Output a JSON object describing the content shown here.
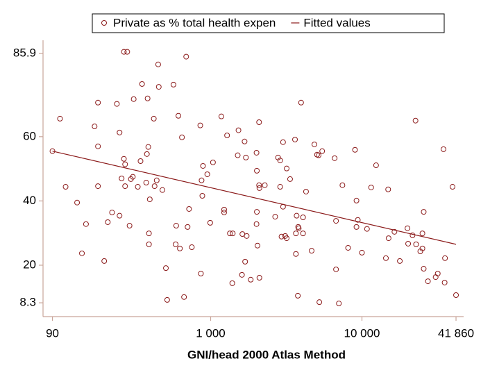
{
  "chart_data": {
    "type": "scatter",
    "x_label": "GNI/head 2000 Atlas Method",
    "xscale": "log",
    "xlim": [
      78,
      47000
    ],
    "ylim": [
      4,
      90
    ],
    "xticks": [
      90,
      {
        "value": 1000,
        "label": "1 000"
      },
      {
        "value": 10000,
        "label": "10 000"
      },
      {
        "value": 41860,
        "label": "41 860"
      }
    ],
    "yticks": [
      8.3,
      20,
      40,
      60,
      85.9
    ],
    "legend": "top",
    "series": [
      {
        "name": "Private as % total health expen",
        "type": "scatter",
        "color": "#8b1a1a",
        "x": [
          90,
          101,
          110,
          131,
          141,
          150,
          171,
          180,
          180,
          180,
          198,
          209,
          223,
          240,
          250,
          250,
          258,
          267,
          281,
          267,
          272,
          272,
          291,
          297,
          306,
          310,
          330,
          344,
          352,
          375,
          379,
          383,
          387,
          391,
          391,
          396,
          421,
          426,
          440,
          450,
          454,
          480,
          506,
          516,
          568,
          587,
          592,
          612,
          626,
          646,
          667,
          689,
          704,
          720,
          751,
          854,
          862,
          871,
          881,
          890,
          950,
          993,
          1036,
          1177,
          1228,
          1228,
          1284,
          1340,
          1400,
          1390,
          1510,
          1527,
          1610,
          1620,
          1676,
          1690,
          1710,
          1730,
          1840,
          2010,
          2010,
          2020,
          2020,
          2040,
          2090,
          2100,
          2100,
          2090,
          2280,
          2670,
          2790,
          2880,
          2880,
          2940,
          3010,
          3010,
          3110,
          3180,
          3180,
          3350,
          3610,
          3660,
          3660,
          3770,
          3700,
          3790,
          3820,
          3960,
          4080,
          4080,
          4270,
          4650,
          4850,
          5050,
          5170,
          5230,
          5460,
          6600,
          6740,
          6740,
          7040,
          7430,
          8100,
          9000,
          9200,
          9200,
          9390,
          10000,
          10800,
          11500,
          12400,
          14400,
          14900,
          15000,
          16400,
          17800,
          20000,
          20200,
          21600,
          22600,
          22800,
          24300,
          25100,
          25100,
          25600,
          25600,
          27300,
          30700,
          31700,
          34600,
          35200,
          35400,
          39700,
          41860
        ],
        "values": [
          55.5,
          65.6,
          44.4,
          39.5,
          23.7,
          32.8,
          63.2,
          70.6,
          57,
          44.6,
          21.3,
          33.4,
          36.4,
          70.2,
          61.3,
          35.4,
          47,
          86.4,
          86.4,
          53.1,
          44.6,
          51.4,
          32.3,
          46.8,
          47.5,
          71.7,
          44.4,
          52.4,
          76.4,
          45.7,
          54.6,
          71.9,
          56.8,
          29.9,
          26.5,
          40.5,
          65.6,
          44.6,
          46.4,
          82.5,
          75.5,
          43.4,
          19.1,
          9.2,
          76.2,
          26.5,
          32.3,
          66.5,
          25.2,
          59.8,
          10.1,
          84.9,
          31.9,
          37.5,
          25.6,
          63.5,
          17.4,
          46.4,
          41.6,
          50.9,
          48.3,
          33.2,
          52,
          66.3,
          36.4,
          37.3,
          60.4,
          29.9,
          29.9,
          14.4,
          54.2,
          62,
          17,
          29.7,
          58.5,
          21.1,
          53.5,
          29.1,
          15.5,
          32.8,
          55,
          36.6,
          49.4,
          26.1,
          64.5,
          44,
          16.1,
          44.9,
          44.9,
          35.1,
          53.5,
          52.6,
          44.4,
          28.9,
          58.3,
          38.2,
          29.1,
          50.1,
          28.4,
          46.8,
          59.1,
          29.9,
          23.5,
          10.5,
          35.4,
          31.9,
          31.5,
          70.6,
          29.9,
          34.9,
          42.9,
          24.5,
          57.6,
          54.4,
          54.2,
          8.5,
          55.5,
          53.3,
          33.8,
          18.7,
          8.1,
          44.9,
          25.4,
          55.9,
          40.1,
          31.9,
          34.1,
          23.9,
          31.3,
          44.2,
          51.1,
          22.2,
          43.6,
          28.4,
          30.4,
          21.3,
          31.5,
          26.7,
          29.3,
          65,
          26.5,
          24.3,
          29.9,
          25.2,
          36.6,
          18.9,
          15,
          16.3,
          17.4,
          56.1,
          14.6,
          22.2,
          44.4,
          10.7
        ]
      },
      {
        "name": "Fitted values",
        "type": "line",
        "color": "#8b1a1a",
        "x": [
          90,
          41860
        ],
        "values": [
          55.5,
          26.5
        ]
      }
    ]
  }
}
